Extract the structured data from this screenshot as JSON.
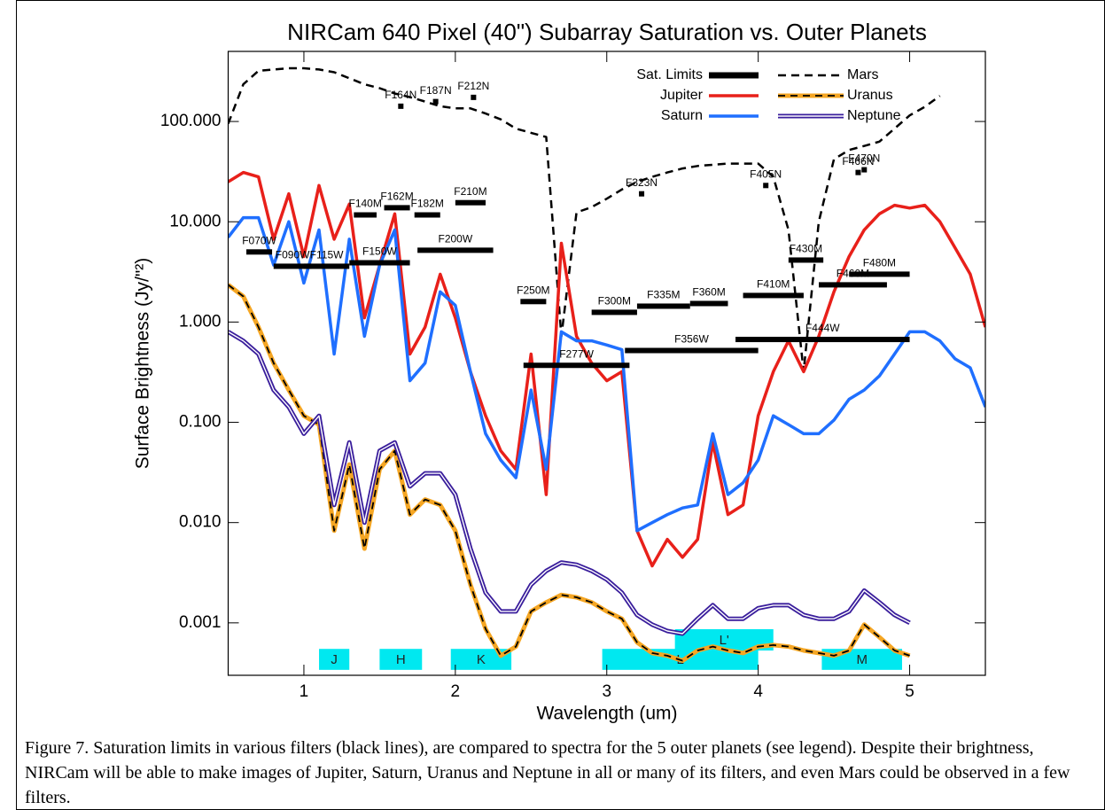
{
  "chart_data": {
    "type": "line",
    "title": "NIRCam 640 Pixel (40\") Subarray Saturation vs. Outer Planets",
    "x_label": "Wavelength (um)",
    "y_label": "Surface Brightness (Jy/\"²)",
    "caption": "Figure 7. Saturation limits in various filters (black lines), are compared to spectra for the 5 outer planets (see legend). Despite their brightness, NIRCam will be able to make images of Jupiter, Saturn, Uranus and Neptune in all or many of its filters, and even Mars could be observed in a few filters.",
    "y_scale": "log",
    "legend": "top-right",
    "xlim": [
      0.5,
      5.5
    ],
    "ylim": [
      0.0003,
      500
    ],
    "xticks": [
      1,
      2,
      3,
      4,
      5
    ],
    "yticks": [
      {
        "value": 0.001,
        "label": "0.001"
      },
      {
        "value": 0.01,
        "label": "0.010"
      },
      {
        "value": 0.1,
        "label": "0.100"
      },
      {
        "value": 1,
        "label": "1.000"
      },
      {
        "value": 10,
        "label": "10.000"
      },
      {
        "value": 100,
        "label": "100.000"
      }
    ],
    "x": [
      0.5,
      0.6,
      0.7,
      0.8,
      0.9,
      1.0,
      1.1,
      1.2,
      1.3,
      1.4,
      1.5,
      1.6,
      1.7,
      1.8,
      1.9,
      2.0,
      2.1,
      2.2,
      2.3,
      2.4,
      2.5,
      2.6,
      2.7,
      2.8,
      2.9,
      3.0,
      3.1,
      3.2,
      3.3,
      3.4,
      3.5,
      3.6,
      3.7,
      3.8,
      3.9,
      4.0,
      4.1,
      4.2,
      4.3,
      4.4,
      4.5,
      4.6,
      4.7,
      4.8,
      4.9,
      5.0,
      5.1,
      5.2,
      5.3,
      5.4,
      5.5
    ],
    "series": [
      {
        "name": "Mars",
        "color": "#000000",
        "style": "dashed",
        "values": [
          95,
          235,
          320,
          330,
          340,
          340,
          330,
          310,
          270,
          235,
          215,
          190,
          175,
          158,
          142,
          135,
          135,
          120,
          105,
          85,
          77,
          70,
          0.72,
          12.4,
          14,
          17,
          21,
          25,
          28,
          31,
          34,
          36,
          37,
          38,
          38,
          38,
          28,
          8.3,
          0.32,
          10,
          42,
          52,
          57,
          63,
          85,
          115,
          140,
          180,
          null,
          null,
          null
        ]
      },
      {
        "name": "Jupiter",
        "color": "#e8201a",
        "style": "solid",
        "values": [
          25,
          31,
          28,
          6.7,
          19,
          4.5,
          23,
          6.7,
          15,
          1.1,
          3.7,
          12,
          0.48,
          0.89,
          3.0,
          1.1,
          0.32,
          0.116,
          0.052,
          0.034,
          0.48,
          0.019,
          6.1,
          0.72,
          0.39,
          0.26,
          0.32,
          0.0083,
          0.0037,
          0.0068,
          0.0045,
          0.0068,
          0.063,
          0.012,
          0.015,
          0.116,
          0.32,
          0.65,
          0.32,
          0.72,
          2.0,
          4.5,
          8.3,
          12,
          14.6,
          13.7,
          14.6,
          10,
          5.5,
          3.0,
          0.89
        ]
      },
      {
        "name": "Uranus",
        "color": "#f5a623",
        "style": "dashed-overlay",
        "values": [
          2.35,
          1.8,
          0.89,
          0.39,
          0.21,
          0.116,
          0.095,
          0.0083,
          0.038,
          0.0055,
          0.034,
          0.052,
          0.012,
          0.017,
          0.015,
          0.0083,
          0.0024,
          0.00087,
          0.00047,
          0.00058,
          0.0013,
          0.0016,
          0.0019,
          0.0018,
          0.0016,
          0.0013,
          0.0011,
          0.00064,
          0.0005,
          0.00047,
          0.00042,
          0.00053,
          0.00058,
          0.00053,
          0.0005,
          0.00058,
          0.0006,
          0.00058,
          0.00053,
          0.0005,
          0.00047,
          0.00053,
          0.00096,
          0.00072,
          0.00053,
          0.00047,
          null,
          null,
          null,
          null,
          null
        ]
      },
      {
        "name": "Saturn",
        "color": "#1f6fff",
        "style": "solid",
        "values": [
          7.0,
          11,
          11,
          3.7,
          10,
          2.45,
          8.3,
          0.48,
          6.7,
          0.72,
          3.7,
          8.3,
          0.26,
          0.39,
          2.0,
          1.47,
          0.32,
          0.077,
          0.042,
          0.028,
          0.21,
          0.034,
          0.8,
          0.65,
          0.65,
          0.59,
          0.53,
          0.0083,
          0.01,
          0.012,
          0.014,
          0.015,
          0.077,
          0.019,
          0.025,
          0.042,
          0.116,
          0.095,
          0.077,
          0.077,
          0.105,
          0.17,
          0.21,
          0.29,
          0.48,
          0.8,
          0.8,
          0.65,
          0.43,
          0.35,
          0.142
        ]
      },
      {
        "name": "Neptune",
        "color": "#3a1e9c",
        "style": "double",
        "values": [
          0.8,
          0.65,
          0.48,
          0.21,
          0.142,
          0.077,
          0.116,
          0.015,
          0.063,
          0.01,
          0.052,
          0.063,
          0.023,
          0.031,
          0.031,
          0.019,
          0.0055,
          0.002,
          0.0013,
          0.0013,
          0.0024,
          0.0033,
          0.004,
          0.0038,
          0.0033,
          0.0027,
          0.002,
          0.0012,
          0.00096,
          0.00083,
          0.00078,
          0.0011,
          0.0015,
          0.0011,
          0.0011,
          0.0014,
          0.0015,
          0.0015,
          0.0012,
          0.0011,
          0.0011,
          0.0013,
          0.0021,
          0.0016,
          0.0012,
          0.001,
          null,
          null,
          null,
          null,
          null
        ]
      }
    ],
    "saturation_limits": {
      "name": "Sat. Limits",
      "color": "#000000",
      "filters": [
        {
          "name": "F070W",
          "x": [
            0.62,
            0.79
          ],
          "value": 5.0
        },
        {
          "name": "F090W",
          "x": [
            0.8,
            1.05
          ],
          "value": 3.6
        },
        {
          "name": "F115W",
          "x": [
            1.0,
            1.3
          ],
          "value": 3.6
        },
        {
          "name": "F150W",
          "x": [
            1.3,
            1.7
          ],
          "value": 3.9
        },
        {
          "name": "F200W",
          "x": [
            1.75,
            2.25
          ],
          "value": 5.2
        },
        {
          "name": "F140M",
          "x": [
            1.33,
            1.48
          ],
          "value": 11.7
        },
        {
          "name": "F162M",
          "x": [
            1.53,
            1.7
          ],
          "value": 13.8
        },
        {
          "name": "F182M",
          "x": [
            1.73,
            1.9
          ],
          "value": 11.7
        },
        {
          "name": "F210M",
          "x": [
            2.0,
            2.2
          ],
          "value": 15.5
        },
        {
          "name": "F164N",
          "x": 1.64,
          "value": 142
        },
        {
          "name": "F187N",
          "x": 1.87,
          "value": 158
        },
        {
          "name": "F212N",
          "x": 2.12,
          "value": 174
        },
        {
          "name": "F250M",
          "x": [
            2.43,
            2.6
          ],
          "value": 1.6
        },
        {
          "name": "F277W",
          "x": [
            2.45,
            3.15
          ],
          "value": 0.37
        },
        {
          "name": "F300M",
          "x": [
            2.9,
            3.2
          ],
          "value": 1.25
        },
        {
          "name": "F335M",
          "x": [
            3.2,
            3.55
          ],
          "value": 1.44
        },
        {
          "name": "F360M",
          "x": [
            3.55,
            3.8
          ],
          "value": 1.53
        },
        {
          "name": "F356W",
          "x": [
            3.12,
            4.0
          ],
          "value": 0.52
        },
        {
          "name": "F323N",
          "x": 3.23,
          "value": 19
        },
        {
          "name": "F405N",
          "x": 4.05,
          "value": 23
        },
        {
          "name": "F410M",
          "x": [
            3.9,
            4.3
          ],
          "value": 1.84
        },
        {
          "name": "F444W",
          "x": [
            3.85,
            5.0
          ],
          "value": 0.67
        },
        {
          "name": "F430M",
          "x": [
            4.2,
            4.43
          ],
          "value": 4.15
        },
        {
          "name": "F460M",
          "x": [
            4.4,
            4.85
          ],
          "value": 2.35
        },
        {
          "name": "F480M",
          "x": [
            4.6,
            5.0
          ],
          "value": 3.0
        },
        {
          "name": "F466N",
          "x": 4.66,
          "value": 31
        },
        {
          "name": "F470N",
          "x": 4.7,
          "value": 33
        }
      ]
    },
    "bands": [
      {
        "name": "J",
        "color": "#00e8f0",
        "x": [
          1.1,
          1.3
        ],
        "y": [
          0.00034,
          0.00055
        ]
      },
      {
        "name": "H",
        "color": "#00e8f0",
        "x": [
          1.5,
          1.78
        ],
        "y": [
          0.00034,
          0.00055
        ]
      },
      {
        "name": "K",
        "color": "#00e8f0",
        "x": [
          1.97,
          2.37
        ],
        "y": [
          0.00034,
          0.00055
        ]
      },
      {
        "name": "L",
        "color": "#00e8f0",
        "x": [
          2.97,
          4.0
        ],
        "y": [
          0.00034,
          0.00055
        ]
      },
      {
        "name": "L'",
        "color": "#00e8f0",
        "x": [
          3.45,
          4.1
        ],
        "y": [
          0.00053,
          0.000865
        ]
      },
      {
        "name": "M",
        "color": "#00e8f0",
        "x": [
          4.42,
          4.95
        ],
        "y": [
          0.00034,
          0.00055
        ]
      }
    ]
  }
}
